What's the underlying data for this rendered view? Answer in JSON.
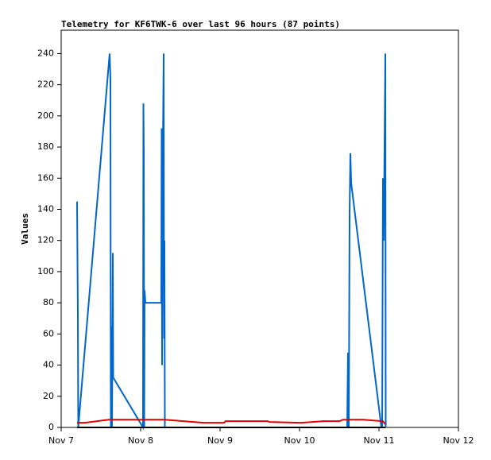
{
  "chart_data": {
    "type": "line",
    "title": "Telemetry for KF6TWK-6 over last 96 hours (87 points)",
    "y_label": "Values",
    "xlim": [
      7,
      12
    ],
    "ylim": [
      0,
      255
    ],
    "xticks": [
      {
        "value": 7,
        "label": "Nov 7"
      },
      {
        "value": 8,
        "label": "Nov 8"
      },
      {
        "value": 9,
        "label": "Nov 9"
      },
      {
        "value": 10,
        "label": "Nov 10"
      },
      {
        "value": 11,
        "label": "Nov 11"
      },
      {
        "value": 12,
        "label": "Nov 12"
      }
    ],
    "yticks": [
      0,
      20,
      40,
      60,
      80,
      100,
      120,
      140,
      160,
      180,
      200,
      220,
      240
    ],
    "grid": false,
    "series": [
      {
        "color": "#0066cc",
        "x": [
          7.2,
          7.21,
          7.215,
          7.61,
          7.62,
          7.625,
          7.635,
          7.64,
          7.65,
          7.655,
          8.03,
          8.035,
          8.04,
          8.045,
          8.05,
          8.06,
          8.26,
          8.265,
          8.27,
          8.28,
          8.29,
          8.295,
          8.3,
          8.305,
          10.6,
          10.605,
          10.61,
          10.62,
          10.63,
          10.64,
          10.65,
          11.03,
          11.04,
          11.05,
          11.06,
          11.08,
          11.085
        ],
        "values": [
          145,
          73,
          0,
          240,
          224,
          0,
          65,
          0,
          112,
          32,
          0,
          208,
          177,
          0,
          88,
          80,
          80,
          192,
          40,
          176,
          240,
          57,
          120,
          0,
          0,
          24,
          48,
          0,
          136,
          176,
          157,
          0,
          0,
          160,
          120,
          240,
          0
        ]
      },
      {
        "color": "#e00000",
        "x": [
          7.2,
          7.3,
          7.6,
          8.0,
          8.3,
          8.8,
          8.82,
          9.05,
          9.07,
          9.6,
          9.62,
          10.0,
          10.02,
          10.3,
          10.5,
          10.55,
          10.8,
          11.05,
          11.08
        ],
        "values": [
          3,
          3,
          5,
          5,
          5,
          3,
          3,
          3,
          4,
          4,
          3.5,
          3,
          3,
          4,
          4,
          5,
          5,
          4,
          2
        ]
      },
      {
        "color": "#000000",
        "x": [
          7.2,
          11.08
        ],
        "values": [
          0,
          0
        ]
      }
    ]
  }
}
